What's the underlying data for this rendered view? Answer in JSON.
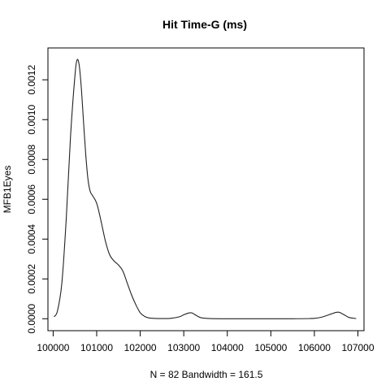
{
  "chart_data": {
    "type": "line",
    "title": "Hit Time-G (ms)",
    "xlabel": "N = 82   Bandwidth = 161.5",
    "ylabel": "MFB1Eyes",
    "xlim": [
      99880,
      107140
    ],
    "ylim": [
      -6e-05,
      0.00136
    ],
    "grid": false,
    "legend": "none",
    "x_ticks": [
      100000,
      101000,
      102000,
      103000,
      104000,
      105000,
      106000,
      107000
    ],
    "x_tick_labels": [
      "100000",
      "101000",
      "102000",
      "103000",
      "104000",
      "105000",
      "106000",
      "107000"
    ],
    "y_ticks": [
      0,
      0.0002,
      0.0004,
      0.0006,
      0.0008,
      0.001,
      0.0012
    ],
    "y_tick_labels": [
      "0.0000",
      "0.0002",
      "0.0004",
      "0.0006",
      "0.0008",
      "0.0010",
      "0.0012"
    ],
    "colors": {
      "curve": "#222222",
      "axes": "#000000"
    },
    "series": [
      {
        "x": [
          100020,
          100100,
          100200,
          100300,
          100400,
          100500,
          100550,
          100600,
          100650,
          100700,
          100750,
          100800,
          100850,
          100900,
          101000,
          101100,
          101200,
          101300,
          101400,
          101500,
          101600,
          101700,
          101800,
          101900,
          102000,
          102100,
          102200,
          102300,
          102400,
          102500,
          102700,
          102900,
          103000,
          103100,
          103150,
          103200,
          103300,
          103400,
          103600,
          104000,
          104500,
          105000,
          105500,
          106000,
          106200,
          106400,
          106500,
          106550,
          106600,
          106700,
          106800,
          106960
        ],
        "y": [
          1e-05,
          4e-05,
          0.00018,
          0.0005,
          0.00092,
          0.00122,
          0.0013,
          0.00127,
          0.00115,
          0.00098,
          0.00082,
          0.0007,
          0.00064,
          0.00062,
          0.00058,
          0.00049,
          0.00039,
          0.00032,
          0.00029,
          0.00027,
          0.00024,
          0.00018,
          0.00012,
          7e-05,
          3e-05,
          1.2e-05,
          4e-06,
          2e-06,
          1e-06,
          1e-06,
          2e-06,
          1e-05,
          2e-05,
          2.8e-05,
          3e-05,
          2.8e-05,
          1.5e-05,
          5e-06,
          1e-06,
          0.0,
          0.0,
          0.0,
          0.0,
          2e-06,
          1e-05,
          2.5e-05,
          3.2e-05,
          3.3e-05,
          3e-05,
          1.8e-05,
          6e-06,
          1e-06
        ]
      }
    ]
  }
}
